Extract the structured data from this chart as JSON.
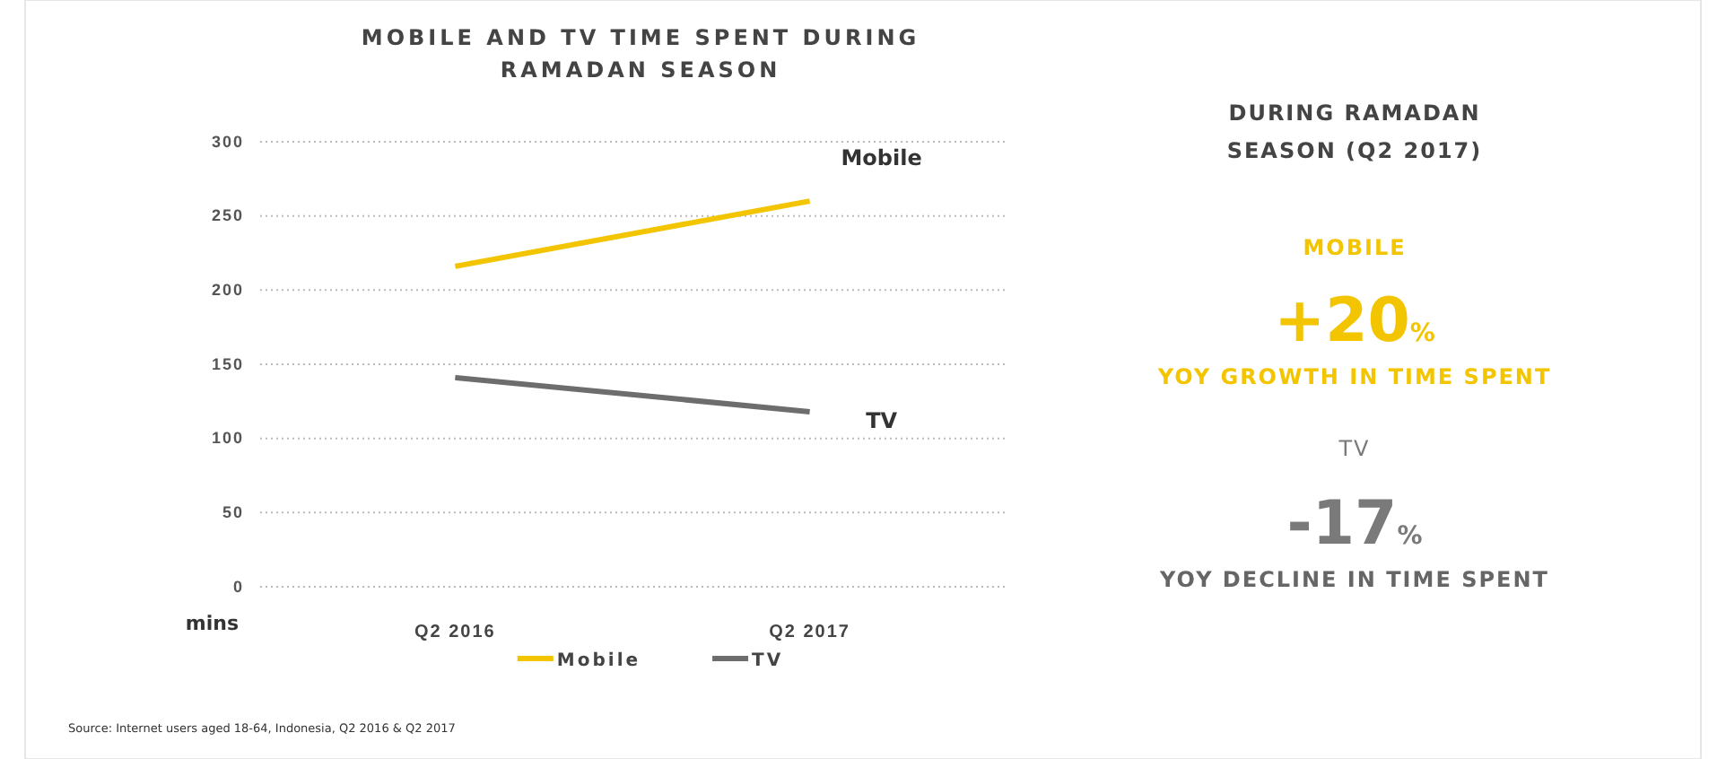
{
  "chart_data": [
    {
      "type": "line",
      "title": "MOBILE AND TV TIME SPENT DURING RAMADAN SEASON",
      "ylabel": "mins",
      "categories": [
        "Q2 2016",
        "Q2 2017"
      ],
      "series": [
        {
          "name": "Mobile",
          "color": "#f2c500",
          "values": [
            216,
            260
          ]
        },
        {
          "name": "TV",
          "color": "#6d6d6d",
          "values": [
            141,
            118
          ]
        }
      ],
      "ylim": [
        0,
        300
      ],
      "yticks": [
        0,
        50,
        100,
        150,
        200,
        250,
        300
      ],
      "grid": "y",
      "legend": "bottom",
      "marker": "none",
      "line_style": "solid",
      "annotations": [
        "Source: Internet users aged 18-64, Indonesia, Q2 2016 & Q2 2017"
      ]
    },
    {
      "type": "other",
      "title": "DURING RAMADAN SEASON (Q2 2017)",
      "annotations": [
        "MOBILE",
        "+20%",
        "YOY GROWTH IN TIME SPENT",
        "TV",
        "-17%",
        "YOY DECLINE IN TIME SPENT"
      ]
    }
  ]
}
